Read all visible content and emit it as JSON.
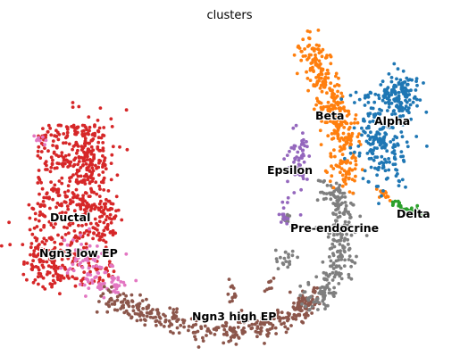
{
  "chart_data": {
    "type": "scatter",
    "title": "clusters",
    "xlabel": "",
    "ylabel": "",
    "grid": false,
    "legend": "on data",
    "clusters": [
      {
        "name": "Ductal",
        "color": "#d62728"
      },
      {
        "name": "Ngn3 low EP",
        "color": "#e377c2"
      },
      {
        "name": "Ngn3 high EP",
        "color": "#8c564b"
      },
      {
        "name": "Pre-endocrine",
        "color": "#7f7f7f"
      },
      {
        "name": "Beta",
        "color": "#ff7f0e"
      },
      {
        "name": "Alpha",
        "color": "#1f77b4"
      },
      {
        "name": "Delta",
        "color": "#2ca02c"
      },
      {
        "name": "Epsilon",
        "color": "#9467bd"
      }
    ]
  }
}
